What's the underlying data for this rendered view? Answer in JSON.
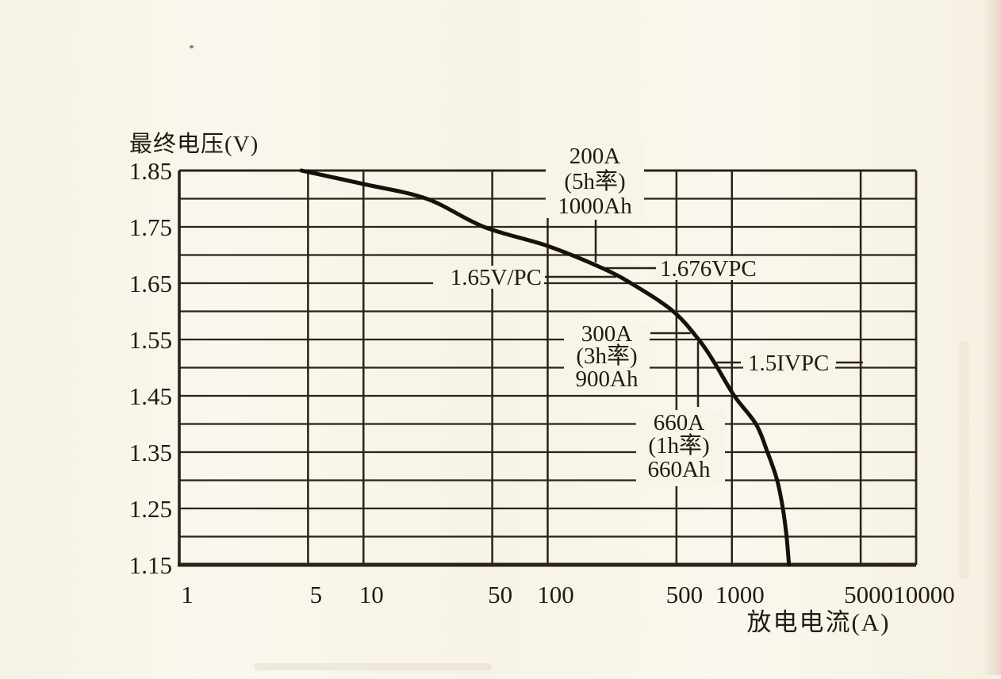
{
  "page": {
    "paper": "#f8f4e8",
    "ink": "#2b2218",
    "curve_color": "#181109"
  },
  "chart_data": {
    "type": "line",
    "title": "",
    "ylabel": "最终电压(V)",
    "xlabel": "放电电流(A)",
    "x_scale": "log",
    "xlim": [
      1,
      10000
    ],
    "ylim": [
      1.15,
      1.85
    ],
    "grid": true,
    "x_ticks": [
      1,
      5,
      10,
      50,
      100,
      500,
      1000,
      5000,
      10000
    ],
    "x_tick_labels": [
      "1",
      "5",
      "10",
      "50",
      "100",
      "500",
      "1000",
      "5000",
      "10000"
    ],
    "y_tick_labels": [
      "1.85",
      "1.75",
      "1.65",
      "1.55",
      "1.45",
      "1.35",
      "1.25",
      "1.15"
    ],
    "y_major_ticks": [
      1.85,
      1.75,
      1.65,
      1.55,
      1.45,
      1.35,
      1.25,
      1.15
    ],
    "y_minor_step": 0.05,
    "series": [
      {
        "name": "discharge-curve",
        "points": [
          [
            4.6,
            1.85
          ],
          [
            10,
            1.826
          ],
          [
            22,
            1.8
          ],
          [
            45,
            1.75
          ],
          [
            100,
            1.716
          ],
          [
            200,
            1.676
          ],
          [
            300,
            1.645
          ],
          [
            480,
            1.6
          ],
          [
            660,
            1.55
          ],
          [
            800,
            1.51
          ],
          [
            1030,
            1.45
          ],
          [
            1350,
            1.4
          ],
          [
            1560,
            1.35
          ],
          [
            1760,
            1.3
          ],
          [
            1890,
            1.25
          ],
          [
            1980,
            1.2
          ],
          [
            2040,
            1.15
          ]
        ]
      }
    ],
    "annotations": [
      {
        "id": "rate-5h",
        "lines": [
          "200A",
          "(5h率)",
          "1000Ah"
        ]
      },
      {
        "id": "vpc-1676",
        "lines": [
          "1.676VPC"
        ]
      },
      {
        "id": "vpc-165",
        "lines": [
          "1.65V/PC"
        ]
      },
      {
        "id": "rate-3h",
        "lines": [
          "300A",
          "(3h率)",
          "900Ah"
        ]
      },
      {
        "id": "vpc-151",
        "lines": [
          "1.5IVPC"
        ]
      },
      {
        "id": "rate-1h",
        "lines": [
          "660A",
          "(1h率)",
          "660Ah"
        ]
      }
    ]
  }
}
